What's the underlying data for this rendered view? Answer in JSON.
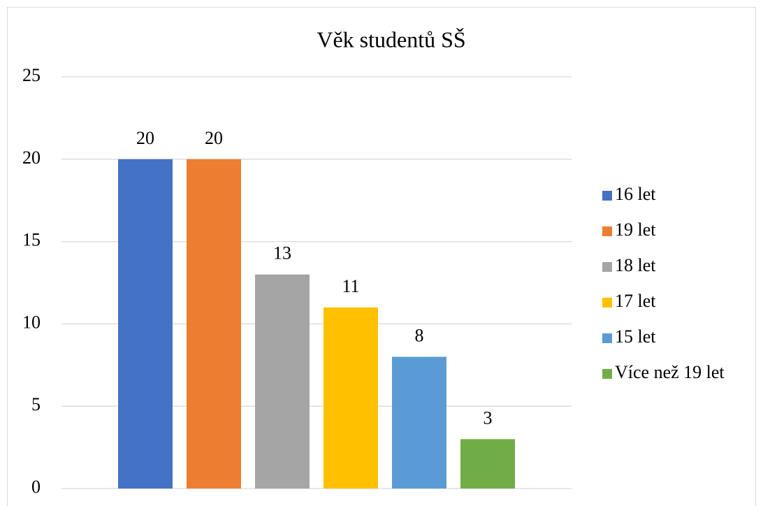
{
  "chart_data": {
    "type": "bar",
    "title": "Věk studentů SŠ",
    "categories": [
      null
    ],
    "series": [
      {
        "name": "16 let",
        "color": "#4472c4",
        "values": [
          20
        ]
      },
      {
        "name": "19 let",
        "color": "#ed7d31",
        "values": [
          20
        ]
      },
      {
        "name": "18 let",
        "color": "#a5a5a5",
        "values": [
          13
        ]
      },
      {
        "name": "17 let",
        "color": "#ffc000",
        "values": [
          11
        ]
      },
      {
        "name": "15 let",
        "color": "#5b9bd5",
        "values": [
          8
        ]
      },
      {
        "name": "Více než 19 let",
        "color": "#70ad47",
        "values": [
          3
        ]
      }
    ],
    "ylim": [
      0,
      25
    ],
    "yticks": [
      0,
      5,
      10,
      15,
      20,
      25
    ],
    "grid": true,
    "legend": "right"
  }
}
